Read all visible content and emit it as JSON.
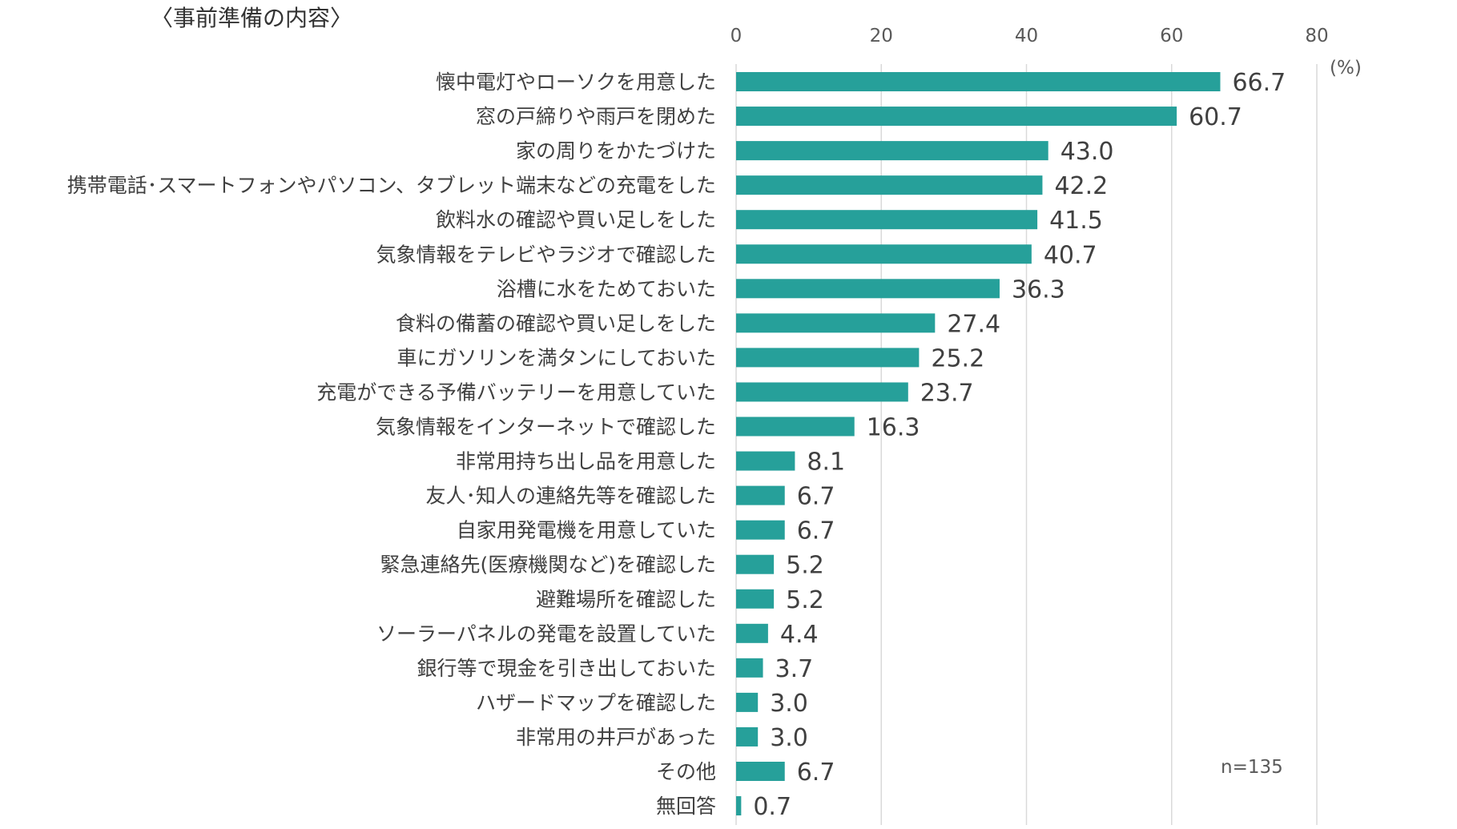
{
  "chart_data": {
    "type": "bar",
    "orientation": "horizontal",
    "title": "〈事前準備の内容〉",
    "unit_label": "(%)",
    "note": "n=135",
    "xlim": [
      0,
      80
    ],
    "x_ticks": [
      "0",
      "20",
      "40",
      "60",
      "80"
    ],
    "x_tick_values": [
      0,
      20,
      40,
      60,
      80
    ],
    "grid": true,
    "bar_color": "#26A09A",
    "categories": [
      "懐中電灯やローソクを用意した",
      "窓の戸締りや雨戸を閉めた",
      "家の周りをかたづけた",
      "携帯電話･スマートフォンやパソコン、タブレット端末などの充電をした",
      "飲料水の確認や買い足しをした",
      "気象情報をテレビやラジオで確認した",
      "浴槽に水をためておいた",
      "食料の備蓄の確認や買い足しをした",
      "車にガソリンを満タンにしておいた",
      "充電ができる予備バッテリーを用意していた",
      "気象情報をインターネットで確認した",
      "非常用持ち出し品を用意した",
      "友人･知人の連絡先等を確認した",
      "自家用発電機を用意していた",
      "緊急連絡先(医療機関など)を確認した",
      "避難場所を確認した",
      "ソーラーパネルの発電を設置していた",
      "銀行等で現金を引き出しておいた",
      "ハザードマップを確認した",
      "非常用の井戸があった",
      "その他",
      "無回答"
    ],
    "values": [
      66.7,
      60.7,
      43.0,
      42.2,
      41.5,
      40.7,
      36.3,
      27.4,
      25.2,
      23.7,
      16.3,
      8.1,
      6.7,
      6.7,
      5.2,
      5.2,
      4.4,
      3.7,
      3.0,
      3.0,
      6.7,
      0.7
    ],
    "value_labels": [
      "66.7",
      "60.7",
      "43.0",
      "42.2",
      "41.5",
      "40.7",
      "36.3",
      "27.4",
      "25.2",
      "23.7",
      "16.3",
      "8.1",
      "6.7",
      "6.7",
      "5.2",
      "5.2",
      "4.4",
      "3.7",
      "3.0",
      "3.0",
      "6.7",
      "0.7"
    ]
  }
}
